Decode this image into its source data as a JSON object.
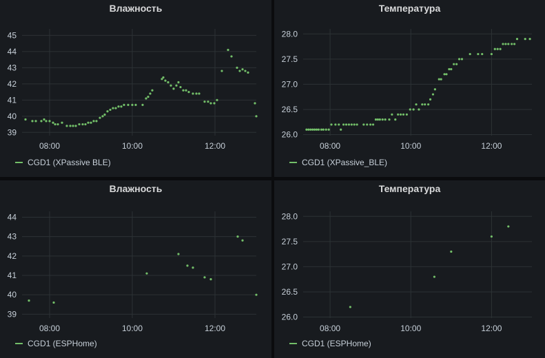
{
  "panels_text": [
    {
      "title": "Влажность",
      "legend": "CGD1 (XPassive BLE)"
    },
    {
      "title": "Температура",
      "legend": "CGD1 (XPassive_BLE)"
    },
    {
      "title": "Влажность",
      "legend": "CGD1 (ESPHome)"
    },
    {
      "title": "Температура",
      "legend": "CGD1 (ESPHome)"
    }
  ],
  "colors": {
    "series": "#73bf69",
    "background": "#181b1f",
    "grid": "#2c3235",
    "text": "#c7d0d9"
  },
  "chart_data": [
    {
      "type": "scatter",
      "title": "Влажность",
      "x_ticks": [
        "08:00",
        "10:00",
        "12:00"
      ],
      "y_ticks": [
        "39",
        "40",
        "41",
        "42",
        "43",
        "44",
        "45"
      ],
      "xlim": [
        "07:20",
        "13:00"
      ],
      "ylim": [
        38.8,
        45.4
      ],
      "grid": true,
      "legend_position": "bottom-left",
      "series": [
        {
          "name": "CGD1 (XPassive BLE)",
          "points": [
            [
              "07:25",
              39.8
            ],
            [
              "07:35",
              39.7
            ],
            [
              "07:40",
              39.7
            ],
            [
              "07:48",
              39.7
            ],
            [
              "07:52",
              39.8
            ],
            [
              "07:55",
              39.7
            ],
            [
              "08:00",
              39.7
            ],
            [
              "08:05",
              39.6
            ],
            [
              "08:08",
              39.5
            ],
            [
              "08:12",
              39.5
            ],
            [
              "08:18",
              39.6
            ],
            [
              "08:25",
              39.4
            ],
            [
              "08:30",
              39.4
            ],
            [
              "08:34",
              39.4
            ],
            [
              "08:38",
              39.4
            ],
            [
              "08:43",
              39.5
            ],
            [
              "08:48",
              39.5
            ],
            [
              "08:52",
              39.5
            ],
            [
              "08:56",
              39.6
            ],
            [
              "09:00",
              39.6
            ],
            [
              "09:04",
              39.7
            ],
            [
              "09:08",
              39.7
            ],
            [
              "09:13",
              39.9
            ],
            [
              "09:17",
              40.0
            ],
            [
              "09:20",
              40.1
            ],
            [
              "09:24",
              40.3
            ],
            [
              "09:28",
              40.4
            ],
            [
              "09:32",
              40.5
            ],
            [
              "09:36",
              40.5
            ],
            [
              "09:40",
              40.6
            ],
            [
              "09:44",
              40.6
            ],
            [
              "09:48",
              40.7
            ],
            [
              "09:54",
              40.7
            ],
            [
              "10:00",
              40.7
            ],
            [
              "10:05",
              40.7
            ],
            [
              "10:15",
              40.7
            ],
            [
              "10:20",
              41.1
            ],
            [
              "10:23",
              41.2
            ],
            [
              "10:26",
              41.4
            ],
            [
              "10:29",
              41.6
            ],
            [
              "10:43",
              42.3
            ],
            [
              "10:45",
              42.4
            ],
            [
              "10:48",
              42.2
            ],
            [
              "10:52",
              42.1
            ],
            [
              "10:56",
              41.9
            ],
            [
              "11:00",
              41.7
            ],
            [
              "11:04",
              41.9
            ],
            [
              "11:07",
              42.1
            ],
            [
              "11:10",
              41.8
            ],
            [
              "11:14",
              41.6
            ],
            [
              "11:18",
              41.6
            ],
            [
              "11:22",
              41.5
            ],
            [
              "11:28",
              41.4
            ],
            [
              "11:33",
              41.4
            ],
            [
              "11:37",
              41.4
            ],
            [
              "11:45",
              40.9
            ],
            [
              "11:50",
              40.9
            ],
            [
              "11:54",
              40.8
            ],
            [
              "11:59",
              40.8
            ],
            [
              "12:03",
              41.0
            ],
            [
              "12:10",
              42.8
            ],
            [
              "12:19",
              44.1
            ],
            [
              "12:24",
              43.7
            ],
            [
              "12:32",
              43.0
            ],
            [
              "12:36",
              42.8
            ],
            [
              "12:40",
              42.9
            ],
            [
              "12:44",
              42.8
            ],
            [
              "12:48",
              42.7
            ],
            [
              "12:58",
              40.8
            ],
            [
              "13:00",
              40.0
            ]
          ]
        }
      ]
    },
    {
      "type": "scatter",
      "title": "Температура",
      "x_ticks": [
        "08:00",
        "10:00",
        "12:00"
      ],
      "y_ticks": [
        "26.0",
        "26.5",
        "27.0",
        "27.5",
        "28.0"
      ],
      "xlim": [
        "07:20",
        "13:00"
      ],
      "ylim": [
        25.98,
        28.1
      ],
      "grid": true,
      "legend_position": "bottom-left",
      "series": [
        {
          "name": "CGD1 (XPassive_BLE)",
          "points": [
            [
              "07:25",
              26.1
            ],
            [
              "07:28",
              26.1
            ],
            [
              "07:31",
              26.1
            ],
            [
              "07:34",
              26.1
            ],
            [
              "07:37",
              26.1
            ],
            [
              "07:40",
              26.1
            ],
            [
              "07:43",
              26.1
            ],
            [
              "07:47",
              26.1
            ],
            [
              "07:50",
              26.1
            ],
            [
              "07:54",
              26.1
            ],
            [
              "07:58",
              26.1
            ],
            [
              "08:02",
              26.2
            ],
            [
              "08:08",
              26.2
            ],
            [
              "08:13",
              26.2
            ],
            [
              "08:16",
              26.1
            ],
            [
              "08:20",
              26.2
            ],
            [
              "08:24",
              26.2
            ],
            [
              "08:28",
              26.2
            ],
            [
              "08:32",
              26.2
            ],
            [
              "08:36",
              26.2
            ],
            [
              "08:40",
              26.2
            ],
            [
              "08:50",
              26.2
            ],
            [
              "08:55",
              26.2
            ],
            [
              "09:00",
              26.2
            ],
            [
              "09:04",
              26.2
            ],
            [
              "09:08",
              26.3
            ],
            [
              "09:11",
              26.3
            ],
            [
              "09:14",
              26.3
            ],
            [
              "09:18",
              26.3
            ],
            [
              "09:22",
              26.3
            ],
            [
              "09:28",
              26.3
            ],
            [
              "09:32",
              26.4
            ],
            [
              "09:37",
              26.3
            ],
            [
              "09:41",
              26.4
            ],
            [
              "09:45",
              26.4
            ],
            [
              "09:49",
              26.4
            ],
            [
              "09:54",
              26.4
            ],
            [
              "09:59",
              26.5
            ],
            [
              "10:04",
              26.5
            ],
            [
              "10:08",
              26.6
            ],
            [
              "10:12",
              26.5
            ],
            [
              "10:17",
              26.6
            ],
            [
              "10:21",
              26.6
            ],
            [
              "10:26",
              26.6
            ],
            [
              "10:29",
              26.7
            ],
            [
              "10:33",
              26.8
            ],
            [
              "10:36",
              26.9
            ],
            [
              "10:42",
              27.1
            ],
            [
              "10:45",
              27.1
            ],
            [
              "10:50",
              27.2
            ],
            [
              "10:53",
              27.2
            ],
            [
              "10:57",
              27.3
            ],
            [
              "11:00",
              27.3
            ],
            [
              "11:04",
              27.4
            ],
            [
              "11:08",
              27.4
            ],
            [
              "11:12",
              27.5
            ],
            [
              "11:16",
              27.5
            ],
            [
              "11:28",
              27.6
            ],
            [
              "11:40",
              27.6
            ],
            [
              "11:46",
              27.6
            ],
            [
              "12:00",
              27.6
            ],
            [
              "12:05",
              27.7
            ],
            [
              "12:09",
              27.7
            ],
            [
              "12:13",
              27.7
            ],
            [
              "12:17",
              27.8
            ],
            [
              "12:21",
              27.8
            ],
            [
              "12:25",
              27.8
            ],
            [
              "12:30",
              27.8
            ],
            [
              "12:34",
              27.8
            ],
            [
              "12:38",
              27.9
            ],
            [
              "12:50",
              27.9
            ],
            [
              "12:57",
              27.9
            ]
          ]
        }
      ]
    },
    {
      "type": "scatter",
      "title": "Влажность",
      "x_ticks": [
        "08:00",
        "10:00",
        "12:00"
      ],
      "y_ticks": [
        "39",
        "40",
        "41",
        "42",
        "43",
        "44"
      ],
      "xlim": [
        "07:20",
        "13:00"
      ],
      "ylim": [
        38.8,
        44.3
      ],
      "grid": true,
      "legend_position": "bottom-left",
      "series": [
        {
          "name": "CGD1 (ESPHome)",
          "points": [
            [
              "07:30",
              39.7
            ],
            [
              "08:06",
              39.6
            ],
            [
              "10:21",
              41.1
            ],
            [
              "11:07",
              42.1
            ],
            [
              "11:20",
              41.5
            ],
            [
              "11:28",
              41.4
            ],
            [
              "11:45",
              40.9
            ],
            [
              "11:54",
              40.8
            ],
            [
              "12:33",
              43.0
            ],
            [
              "12:40",
              42.8
            ],
            [
              "13:00",
              40.0
            ]
          ]
        }
      ]
    },
    {
      "type": "scatter",
      "title": "Температура",
      "x_ticks": [
        "08:00",
        "10:00",
        "12:00"
      ],
      "y_ticks": [
        "26.0",
        "26.5",
        "27.0",
        "27.5",
        "28.0"
      ],
      "xlim": [
        "07:20",
        "13:00"
      ],
      "ylim": [
        25.98,
        28.1
      ],
      "grid": true,
      "legend_position": "bottom-left",
      "series": [
        {
          "name": "CGD1 (ESPHome)",
          "points": [
            [
              "08:30",
              26.2
            ],
            [
              "10:35",
              26.8
            ],
            [
              "11:00",
              27.3
            ],
            [
              "12:00",
              27.6
            ],
            [
              "12:25",
              27.8
            ]
          ]
        }
      ]
    }
  ]
}
